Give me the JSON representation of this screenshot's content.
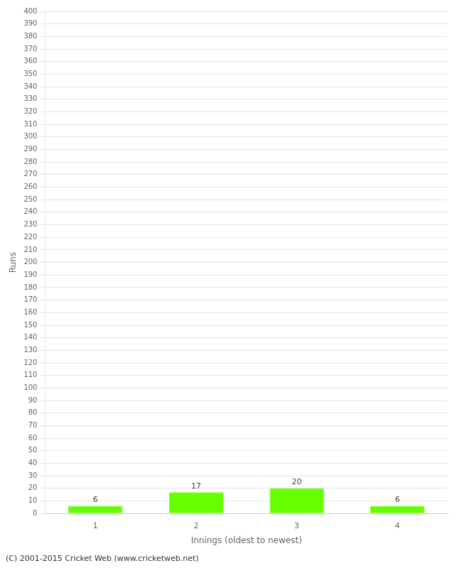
{
  "chart_data": {
    "type": "bar",
    "categories": [
      1,
      2,
      3,
      4
    ],
    "values": [
      6,
      17,
      20,
      6
    ],
    "color": "#66ff00",
    "xlabel": "Innings (oldest to newest)",
    "ylabel": "Runs",
    "ylim": [
      0,
      400
    ],
    "yticks": [
      0,
      10,
      20,
      30,
      40,
      50,
      60,
      70,
      80,
      90,
      100,
      110,
      120,
      130,
      140,
      150,
      160,
      170,
      180,
      190,
      200,
      210,
      220,
      230,
      240,
      250,
      260,
      270,
      280,
      290,
      300,
      310,
      320,
      330,
      340,
      350,
      360,
      370,
      380,
      390,
      400
    ],
    "grid": true,
    "data_labels": true,
    "footer": "(C) 2001-2015 Cricket Web (www.cricketweb.net)"
  }
}
